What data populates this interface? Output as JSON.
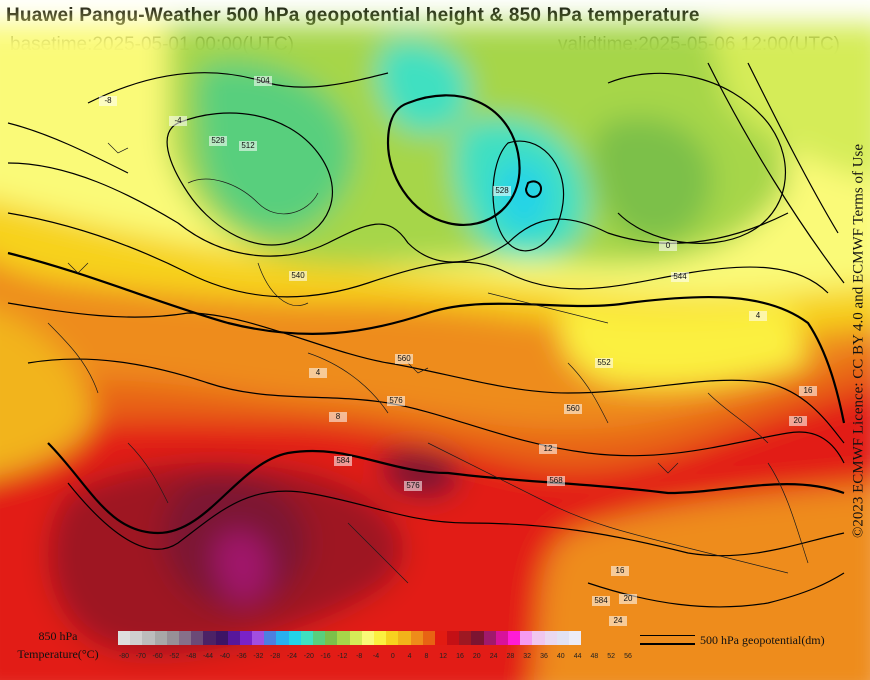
{
  "header": {
    "title": "Huawei Pangu-Weather 500 hPa geopotential height & 850 hPa temperature",
    "basetime": "basetime:2025-05-01 00:00(UTC)",
    "validtime": "validtime:2025-05-06 12:00(UTC)"
  },
  "attribution": "©2023 ECMWF Licence: CC BY 4.0 and ECMWF Terms of Use",
  "legend": {
    "temperature_title_line1": "850 hPa",
    "temperature_title_line2": "Temperature(°C)",
    "colorbar_colors": [
      "#dedede",
      "#cfcfcf",
      "#bcbcbc",
      "#a8a8a8",
      "#979097",
      "#86708a",
      "#6b4a77",
      "#4b2266",
      "#3c1465",
      "#57179b",
      "#7a22c8",
      "#a24ee0",
      "#4d7fe0",
      "#29b0ef",
      "#22d3e8",
      "#3fe0c1",
      "#59cf7d",
      "#7cc04a",
      "#a6d64a",
      "#d5ec58",
      "#fafa78",
      "#fbf040",
      "#f7d21f",
      "#f2b41a",
      "#ee8c1a",
      "#e86313",
      "#e21b12",
      "#c41015",
      "#9e1822",
      "#7c1431",
      "#a0196b",
      "#d8129b",
      "#ff1cd6",
      "#f59af0",
      "#f0c6ee",
      "#ead8f0",
      "#e2e2f2",
      "#ececf6"
    ],
    "colorbar_ticks": [
      "-80",
      "-70",
      "-60",
      "-52",
      "-48",
      "-44",
      "-40",
      "-36",
      "-32",
      "-28",
      "-24",
      "-20",
      "-16",
      "-12",
      "-8",
      "-4",
      "0",
      "4",
      "8",
      "12",
      "16",
      "20",
      "24",
      "28",
      "32",
      "36",
      "40",
      "44",
      "48",
      "52",
      "56"
    ],
    "contour_label": "500 hPa geopotential(dm)"
  },
  "map": {
    "contour_labels": [
      "528",
      "512",
      "540",
      "528",
      "544",
      "552",
      "560",
      "576",
      "560",
      "584",
      "584",
      "568",
      "576",
      "504",
      "0",
      "4",
      "8",
      "12",
      "16",
      "20",
      "24",
      "-4",
      "-8",
      "16",
      "20",
      "4"
    ]
  }
}
